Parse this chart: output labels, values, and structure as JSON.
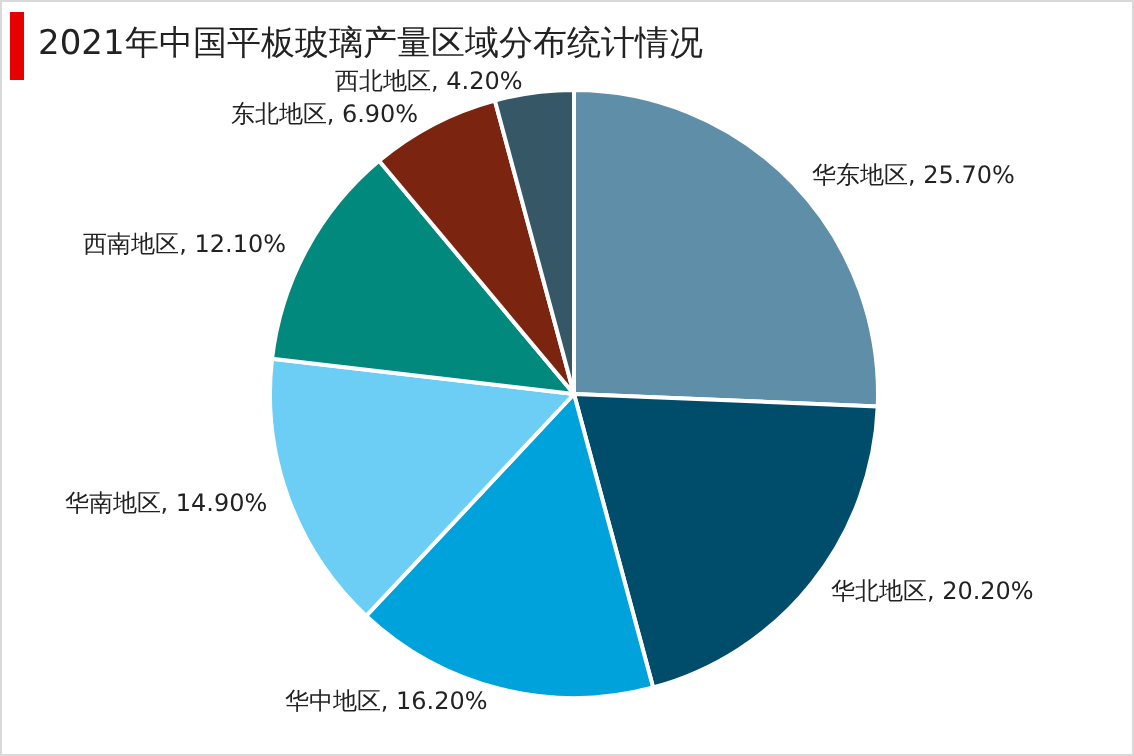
{
  "chart_data": {
    "type": "pie",
    "title": "2021年中国平板玻璃产量区域分布统计情况",
    "categories": [
      "华东地区",
      "华北地区",
      "华中地区",
      "华南地区",
      "西南地区",
      "东北地区",
      "西北地区"
    ],
    "values": [
      25.7,
      20.2,
      16.2,
      14.9,
      12.1,
      6.9,
      4.2
    ],
    "value_labels": [
      "25.70%",
      "20.20%",
      "16.20%",
      "14.90%",
      "12.10%",
      "6.90%",
      "4.20%"
    ],
    "colors": [
      "#5f8fa8",
      "#004d6b",
      "#00a2dc",
      "#6dcef5",
      "#00897c",
      "#7b2511",
      "#365866"
    ],
    "legend": false
  }
}
